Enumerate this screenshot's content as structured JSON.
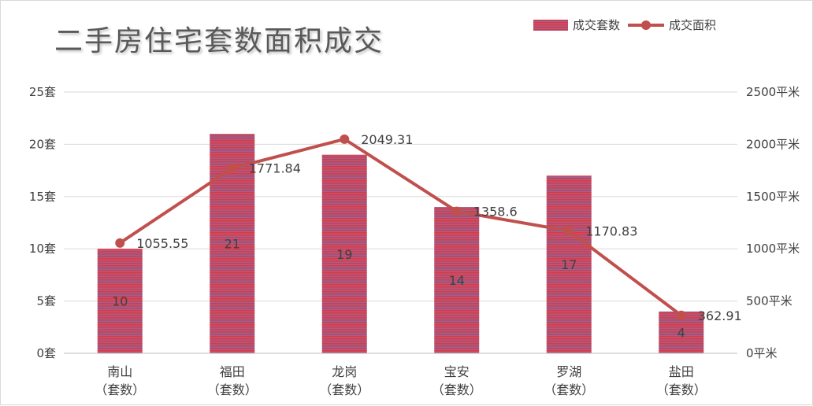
{
  "chart_data": {
    "type": "bar",
    "title": "二手房住宅套数面积成交",
    "categories": [
      "南山\n（套数）",
      "福田\n（套数）",
      "龙岗\n（套数）",
      "宝安\n（套数）",
      "罗湖\n（套数）",
      "盐田\n（套数）"
    ],
    "series": [
      {
        "name": "成交套数",
        "type": "bar",
        "axis": "left",
        "values": [
          10,
          21,
          19,
          14,
          17,
          4
        ],
        "labels": [
          "10",
          "21",
          "19",
          "14",
          "17",
          "4"
        ]
      },
      {
        "name": "成交面积",
        "type": "line",
        "axis": "right",
        "values": [
          1055.55,
          1771.84,
          2049.31,
          1358.6,
          1170.83,
          362.91
        ],
        "labels": [
          "1055.55",
          "1771.84",
          "2049.31",
          "1358.6",
          "1170.83",
          "362.91"
        ]
      }
    ],
    "y_left": {
      "ylim": [
        0,
        25
      ],
      "ticks": [
        0,
        5,
        10,
        15,
        20,
        25
      ],
      "tick_labels": [
        "0套",
        "5套",
        "10套",
        "15套",
        "20套",
        "25套"
      ]
    },
    "y_right": {
      "ylim": [
        0,
        2500
      ],
      "ticks": [
        0,
        500,
        1000,
        1500,
        2000,
        2500
      ],
      "tick_labels": [
        "0平米",
        "500平米",
        "1000平米",
        "1500平米",
        "2000平米",
        "2500平米"
      ]
    },
    "grid": true,
    "legend": "top-right",
    "colors": {
      "bar_primary": "#ff2b2b",
      "bar_secondary": "#7a6fa8",
      "line": "#c0504d",
      "grid": "#d9d9d9",
      "text": "#404040"
    }
  }
}
